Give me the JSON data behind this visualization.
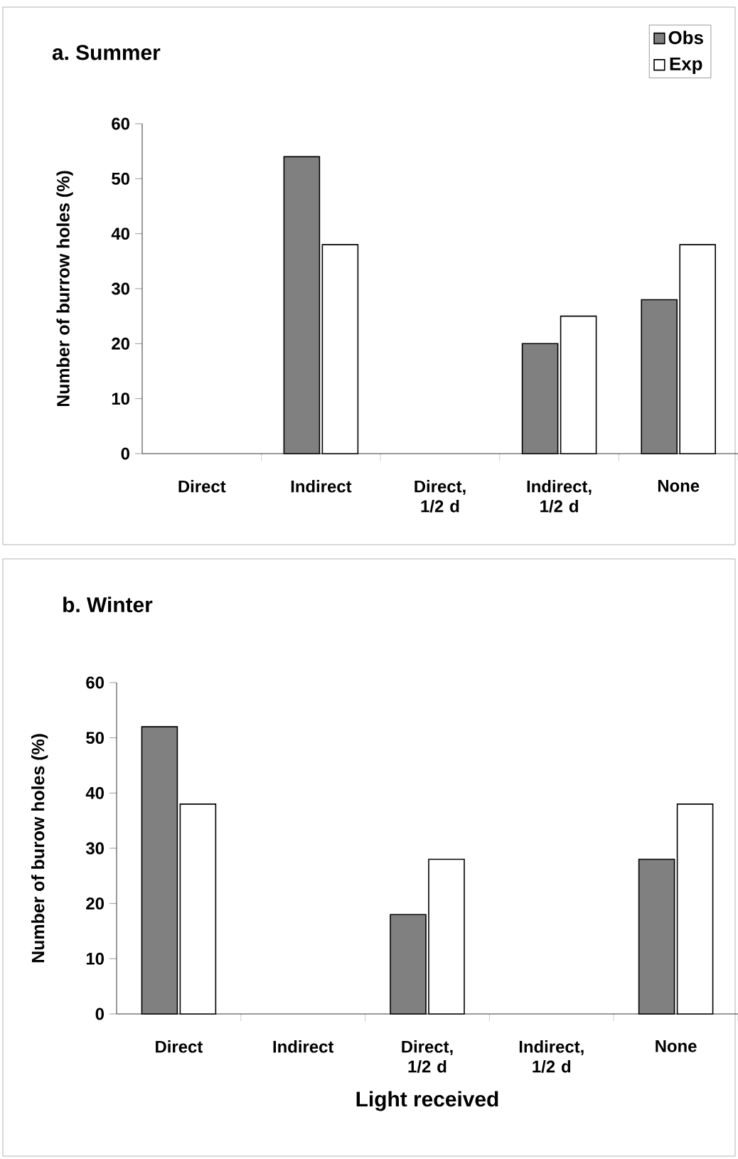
{
  "chart_data": [
    {
      "type": "bar",
      "title": "a. Summer",
      "ylabel": "Number of burrow holes (%)",
      "categories": [
        "Direct",
        "Indirect",
        "Direct, 1/2 d",
        "Indirect, 1/2 d",
        "None"
      ],
      "ylim": [
        0,
        60
      ],
      "yticks": [
        0,
        10,
        20,
        30,
        40,
        50,
        60
      ],
      "legend": "top right",
      "series": [
        {
          "name": "Obs",
          "color": "#808080",
          "values": [
            0,
            54,
            0,
            20,
            28
          ]
        },
        {
          "name": "Exp",
          "color": "#ffffff",
          "values": [
            0,
            38,
            0,
            25,
            38
          ]
        }
      ]
    },
    {
      "type": "bar",
      "title": "b. Winter",
      "ylabel": "Number of burow holes (%)",
      "xlabel": "Light received",
      "categories": [
        "Direct",
        "Indirect",
        "Direct, 1/2 d",
        "Indirect, 1/2 d",
        "None"
      ],
      "ylim": [
        0,
        60
      ],
      "yticks": [
        0,
        10,
        20,
        30,
        40,
        50,
        60
      ],
      "series": [
        {
          "color": "#808080",
          "values": [
            52,
            0,
            18,
            0,
            28
          ]
        },
        {
          "color": "#ffffff",
          "values": [
            38,
            0,
            28,
            0,
            38
          ]
        }
      ]
    }
  ]
}
